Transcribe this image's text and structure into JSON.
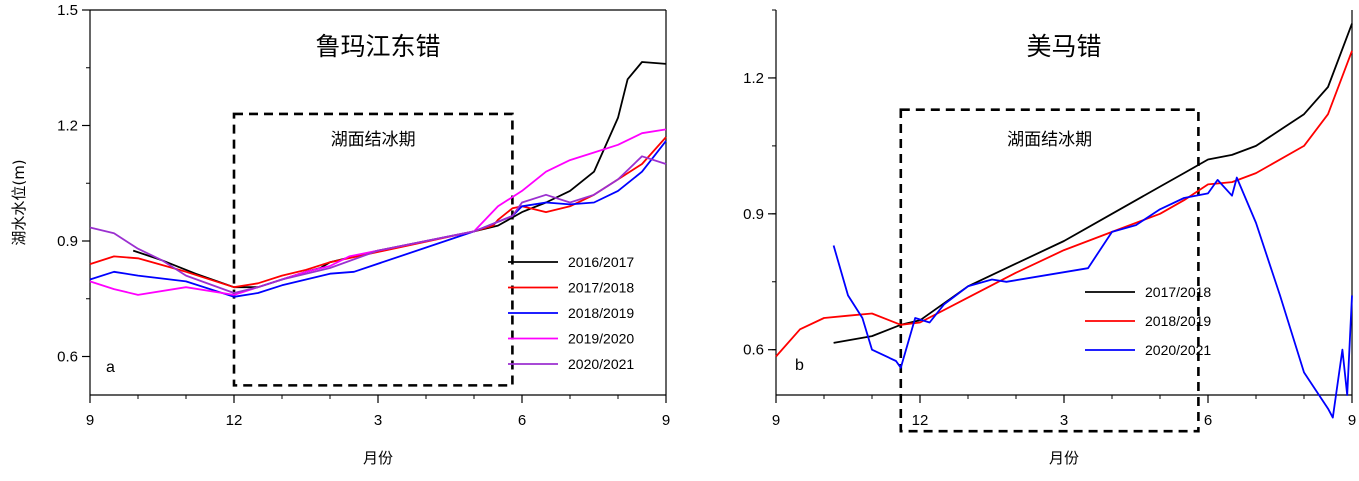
{
  "chart_data": [
    {
      "type": "line",
      "title": "鲁玛江东错",
      "panel_label": "a",
      "xlabel": "月份",
      "ylabel": "湖水水位(m)",
      "x_tick_labels": [
        "9",
        "12",
        "3",
        "6",
        "9"
      ],
      "xlim": [
        0,
        12
      ],
      "ylim": [
        0.5,
        1.5
      ],
      "y_ticks": [
        0.6,
        0.9,
        1.2,
        1.5
      ],
      "y_tick_labels": [
        "0.6",
        "0.9",
        "1.2",
        "1.5"
      ],
      "legend_position": "lower-right",
      "annotation": {
        "text": "湖面结冰期",
        "x0": 3.0,
        "x1": 8.8,
        "y0": 0.525,
        "y1": 1.23
      },
      "series": [
        {
          "name": "2016/2017",
          "color": "#000000",
          "points": [
            [
              0.9,
              0.875
            ],
            [
              1.5,
              0.85
            ],
            [
              2.2,
              0.815
            ],
            [
              3.0,
              0.78
            ],
            [
              3.5,
              0.78
            ],
            [
              4.0,
              0.8
            ],
            [
              4.5,
              0.82
            ],
            [
              4.8,
              0.83
            ],
            [
              5.0,
              0.845
            ],
            [
              6.0,
              0.875
            ],
            [
              7.0,
              0.9
            ],
            [
              8.0,
              0.925
            ],
            [
              8.5,
              0.94
            ],
            [
              9.0,
              0.975
            ],
            [
              9.5,
              1.0
            ],
            [
              10.0,
              1.03
            ],
            [
              10.5,
              1.08
            ],
            [
              11.0,
              1.22
            ],
            [
              11.2,
              1.32
            ],
            [
              11.5,
              1.365
            ],
            [
              12.0,
              1.36
            ]
          ]
        },
        {
          "name": "2017/2018",
          "color": "#ff0000",
          "points": [
            [
              0.0,
              0.84
            ],
            [
              0.5,
              0.86
            ],
            [
              1.0,
              0.855
            ],
            [
              2.0,
              0.82
            ],
            [
              3.0,
              0.78
            ],
            [
              3.5,
              0.79
            ],
            [
              4.0,
              0.81
            ],
            [
              4.5,
              0.825
            ],
            [
              5.0,
              0.845
            ],
            [
              8.0,
              0.925
            ],
            [
              8.4,
              0.94
            ],
            [
              8.5,
              0.955
            ],
            [
              8.8,
              0.985
            ],
            [
              9.0,
              0.99
            ],
            [
              9.5,
              0.975
            ],
            [
              10.0,
              0.99
            ],
            [
              10.5,
              1.02
            ],
            [
              11.0,
              1.06
            ],
            [
              11.5,
              1.1
            ],
            [
              12.0,
              1.17
            ]
          ]
        },
        {
          "name": "2018/2019",
          "color": "#0000ff",
          "points": [
            [
              0.0,
              0.8
            ],
            [
              0.5,
              0.82
            ],
            [
              1.0,
              0.81
            ],
            [
              2.0,
              0.795
            ],
            [
              3.0,
              0.755
            ],
            [
              3.5,
              0.765
            ],
            [
              4.0,
              0.785
            ],
            [
              4.5,
              0.8
            ],
            [
              5.0,
              0.815
            ],
            [
              5.5,
              0.82
            ],
            [
              8.0,
              0.925
            ],
            [
              8.8,
              0.965
            ],
            [
              9.0,
              0.99
            ],
            [
              9.5,
              1.0
            ],
            [
              10.0,
              0.995
            ],
            [
              10.5,
              1.0
            ],
            [
              11.0,
              1.03
            ],
            [
              11.5,
              1.08
            ],
            [
              12.0,
              1.16
            ]
          ]
        },
        {
          "name": "2019/2020",
          "color": "#ff00ff",
          "points": [
            [
              0.0,
              0.795
            ],
            [
              0.5,
              0.775
            ],
            [
              1.0,
              0.76
            ],
            [
              2.0,
              0.78
            ],
            [
              3.0,
              0.76
            ],
            [
              3.5,
              0.78
            ],
            [
              4.0,
              0.8
            ],
            [
              4.5,
              0.82
            ],
            [
              5.0,
              0.835
            ],
            [
              5.4,
              0.86
            ],
            [
              8.0,
              0.925
            ],
            [
              8.5,
              0.99
            ],
            [
              9.0,
              1.03
            ],
            [
              9.5,
              1.08
            ],
            [
              10.0,
              1.11
            ],
            [
              10.5,
              1.13
            ],
            [
              11.0,
              1.15
            ],
            [
              11.5,
              1.18
            ],
            [
              12.0,
              1.19
            ]
          ]
        },
        {
          "name": "2020/2021",
          "color": "#9b30d0",
          "points": [
            [
              0.0,
              0.935
            ],
            [
              0.5,
              0.92
            ],
            [
              1.0,
              0.88
            ],
            [
              1.5,
              0.85
            ],
            [
              2.0,
              0.81
            ],
            [
              3.0,
              0.765
            ],
            [
              3.5,
              0.78
            ],
            [
              4.0,
              0.8
            ],
            [
              5.0,
              0.83
            ],
            [
              6.0,
              0.875
            ],
            [
              7.0,
              0.9
            ],
            [
              8.0,
              0.925
            ],
            [
              8.8,
              0.965
            ],
            [
              9.0,
              1.0
            ],
            [
              9.5,
              1.02
            ],
            [
              10.0,
              1.0
            ],
            [
              10.5,
              1.02
            ],
            [
              11.0,
              1.06
            ],
            [
              11.5,
              1.12
            ],
            [
              12.0,
              1.1
            ]
          ]
        }
      ]
    },
    {
      "type": "line",
      "title": "美马错",
      "panel_label": "b",
      "xlabel": "月份",
      "ylabel": "",
      "x_tick_labels": [
        "9",
        "12",
        "3",
        "6",
        "9"
      ],
      "xlim": [
        0,
        12
      ],
      "ylim": [
        0.5,
        1.35
      ],
      "y_ticks": [
        0.6,
        0.9,
        1.2
      ],
      "y_tick_labels": [
        "0.6",
        "0.9",
        "1.2"
      ],
      "legend_position": "lower-center",
      "annotation": {
        "text": "湖面结冰期",
        "x0": 2.6,
        "x1": 8.8,
        "y0": 0.42,
        "y1": 1.13
      },
      "series": [
        {
          "name": "2017/2018",
          "color": "#000000",
          "points": [
            [
              1.2,
              0.615
            ],
            [
              2.0,
              0.63
            ],
            [
              2.6,
              0.655
            ],
            [
              3.0,
              0.665
            ],
            [
              4.0,
              0.74
            ],
            [
              5.0,
              0.79
            ],
            [
              6.0,
              0.84
            ],
            [
              7.0,
              0.9
            ],
            [
              8.0,
              0.96
            ],
            [
              8.5,
              0.99
            ],
            [
              9.0,
              1.02
            ],
            [
              9.5,
              1.03
            ],
            [
              10.0,
              1.05
            ],
            [
              11.0,
              1.12
            ],
            [
              11.5,
              1.18
            ],
            [
              12.0,
              1.32
            ]
          ]
        },
        {
          "name": "2018/2019",
          "color": "#ff0000",
          "points": [
            [
              0.0,
              0.585
            ],
            [
              0.5,
              0.645
            ],
            [
              1.0,
              0.67
            ],
            [
              1.5,
              0.675
            ],
            [
              2.0,
              0.68
            ],
            [
              2.6,
              0.655
            ],
            [
              3.0,
              0.66
            ],
            [
              4.0,
              0.715
            ],
            [
              5.0,
              0.77
            ],
            [
              6.0,
              0.82
            ],
            [
              7.0,
              0.86
            ],
            [
              8.0,
              0.9
            ],
            [
              8.5,
              0.93
            ],
            [
              9.0,
              0.965
            ],
            [
              9.5,
              0.97
            ],
            [
              10.0,
              0.99
            ],
            [
              11.0,
              1.05
            ],
            [
              11.5,
              1.12
            ],
            [
              12.0,
              1.26
            ]
          ]
        },
        {
          "name": "2020/2021",
          "color": "#0000ff",
          "points": [
            [
              1.2,
              0.83
            ],
            [
              1.5,
              0.72
            ],
            [
              1.8,
              0.67
            ],
            [
              2.0,
              0.6
            ],
            [
              2.5,
              0.575
            ],
            [
              2.6,
              0.56
            ],
            [
              2.9,
              0.67
            ],
            [
              3.2,
              0.66
            ],
            [
              3.5,
              0.7
            ],
            [
              4.0,
              0.74
            ],
            [
              4.5,
              0.755
            ],
            [
              4.8,
              0.75
            ],
            [
              6.5,
              0.78
            ],
            [
              7.0,
              0.86
            ],
            [
              7.5,
              0.875
            ],
            [
              8.0,
              0.91
            ],
            [
              8.5,
              0.935
            ],
            [
              9.0,
              0.945
            ],
            [
              9.2,
              0.975
            ],
            [
              9.5,
              0.94
            ],
            [
              9.6,
              0.98
            ],
            [
              10.0,
              0.88
            ],
            [
              10.5,
              0.72
            ],
            [
              11.0,
              0.55
            ],
            [
              11.5,
              0.47
            ],
            [
              11.6,
              0.45
            ],
            [
              11.8,
              0.6
            ],
            [
              11.9,
              0.5
            ],
            [
              12.0,
              0.72
            ]
          ]
        }
      ]
    }
  ]
}
